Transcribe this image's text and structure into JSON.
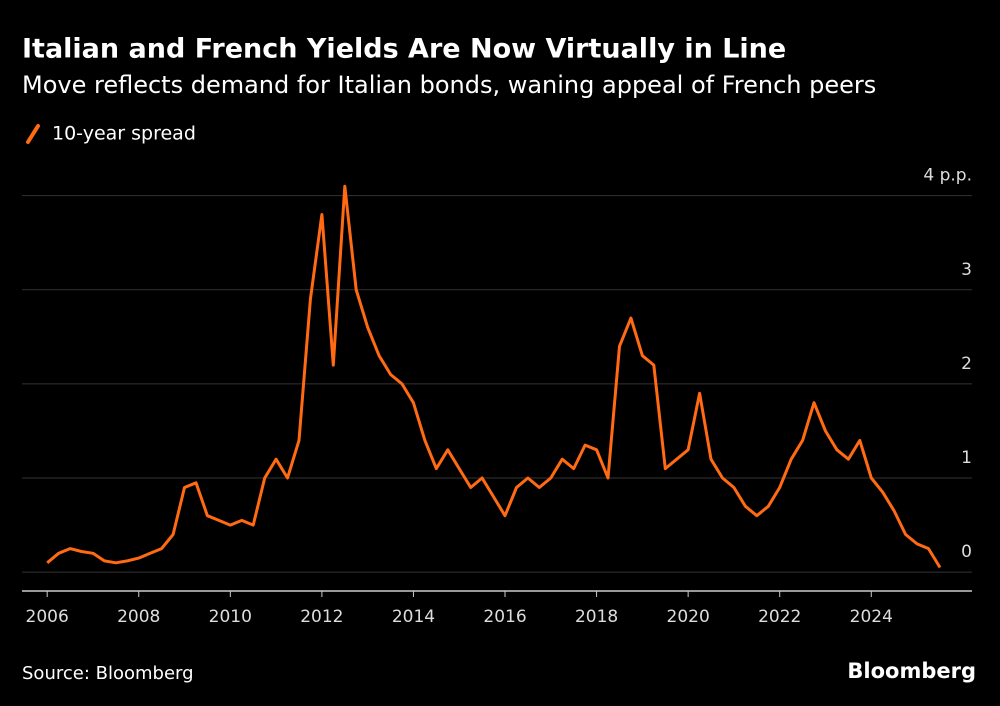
{
  "chart_data": {
    "type": "line",
    "title": "Italian and French Yields Are Now Virtually in Line",
    "subtitle": "Move reflects demand for Italian bonds, waning appeal of French peers",
    "source": "Source: Bloomberg",
    "brand": "Bloomberg",
    "x": [
      2006,
      2006.25,
      2006.5,
      2006.75,
      2007,
      2007.25,
      2007.5,
      2007.75,
      2008,
      2008.25,
      2008.5,
      2008.75,
      2009,
      2009.25,
      2009.5,
      2009.75,
      2010,
      2010.25,
      2010.5,
      2010.75,
      2011,
      2011.25,
      2011.5,
      2011.75,
      2012,
      2012.25,
      2012.5,
      2012.75,
      2013,
      2013.25,
      2013.5,
      2013.75,
      2014,
      2014.25,
      2014.5,
      2014.75,
      2015,
      2015.25,
      2015.5,
      2015.75,
      2016,
      2016.25,
      2016.5,
      2016.75,
      2017,
      2017.25,
      2017.5,
      2017.75,
      2018,
      2018.25,
      2018.5,
      2018.75,
      2019,
      2019.25,
      2019.5,
      2019.75,
      2020,
      2020.25,
      2020.5,
      2020.75,
      2021,
      2021.25,
      2021.5,
      2021.75,
      2022,
      2022.25,
      2022.5,
      2022.75,
      2023,
      2023.25,
      2023.5,
      2023.75,
      2024,
      2024.25,
      2024.5,
      2024.75,
      2025,
      2025.25,
      2025.5
    ],
    "series": [
      {
        "name": "10-year spread",
        "color": "#ff6a13",
        "values": [
          0.1,
          0.2,
          0.25,
          0.22,
          0.2,
          0.12,
          0.1,
          0.12,
          0.15,
          0.2,
          0.25,
          0.4,
          0.9,
          0.95,
          0.6,
          0.55,
          0.5,
          0.55,
          0.5,
          1.0,
          1.2,
          1.0,
          1.4,
          2.9,
          3.8,
          2.2,
          4.1,
          3.0,
          2.6,
          2.3,
          2.1,
          2.0,
          1.8,
          1.4,
          1.1,
          1.3,
          1.1,
          0.9,
          1.0,
          0.8,
          0.6,
          0.9,
          1.0,
          0.9,
          1.0,
          1.2,
          1.1,
          1.35,
          1.3,
          1.0,
          2.4,
          2.7,
          2.3,
          2.2,
          1.1,
          1.2,
          1.3,
          1.9,
          1.2,
          1.0,
          0.9,
          0.7,
          0.6,
          0.7,
          0.9,
          1.2,
          1.4,
          1.8,
          1.5,
          1.3,
          1.2,
          1.4,
          1.0,
          0.85,
          0.65,
          0.4,
          0.3,
          0.25,
          0.05
        ]
      }
    ],
    "xlim": [
      2005.45,
      2026.2
    ],
    "xticks": [
      2006,
      2008,
      2010,
      2012,
      2014,
      2016,
      2018,
      2020,
      2022,
      2024
    ],
    "ylim": [
      -0.2,
      4.4
    ],
    "yticks": [
      0,
      1,
      2,
      3,
      {
        "value": 4,
        "label": "4 p.p."
      }
    ],
    "grid": true
  }
}
